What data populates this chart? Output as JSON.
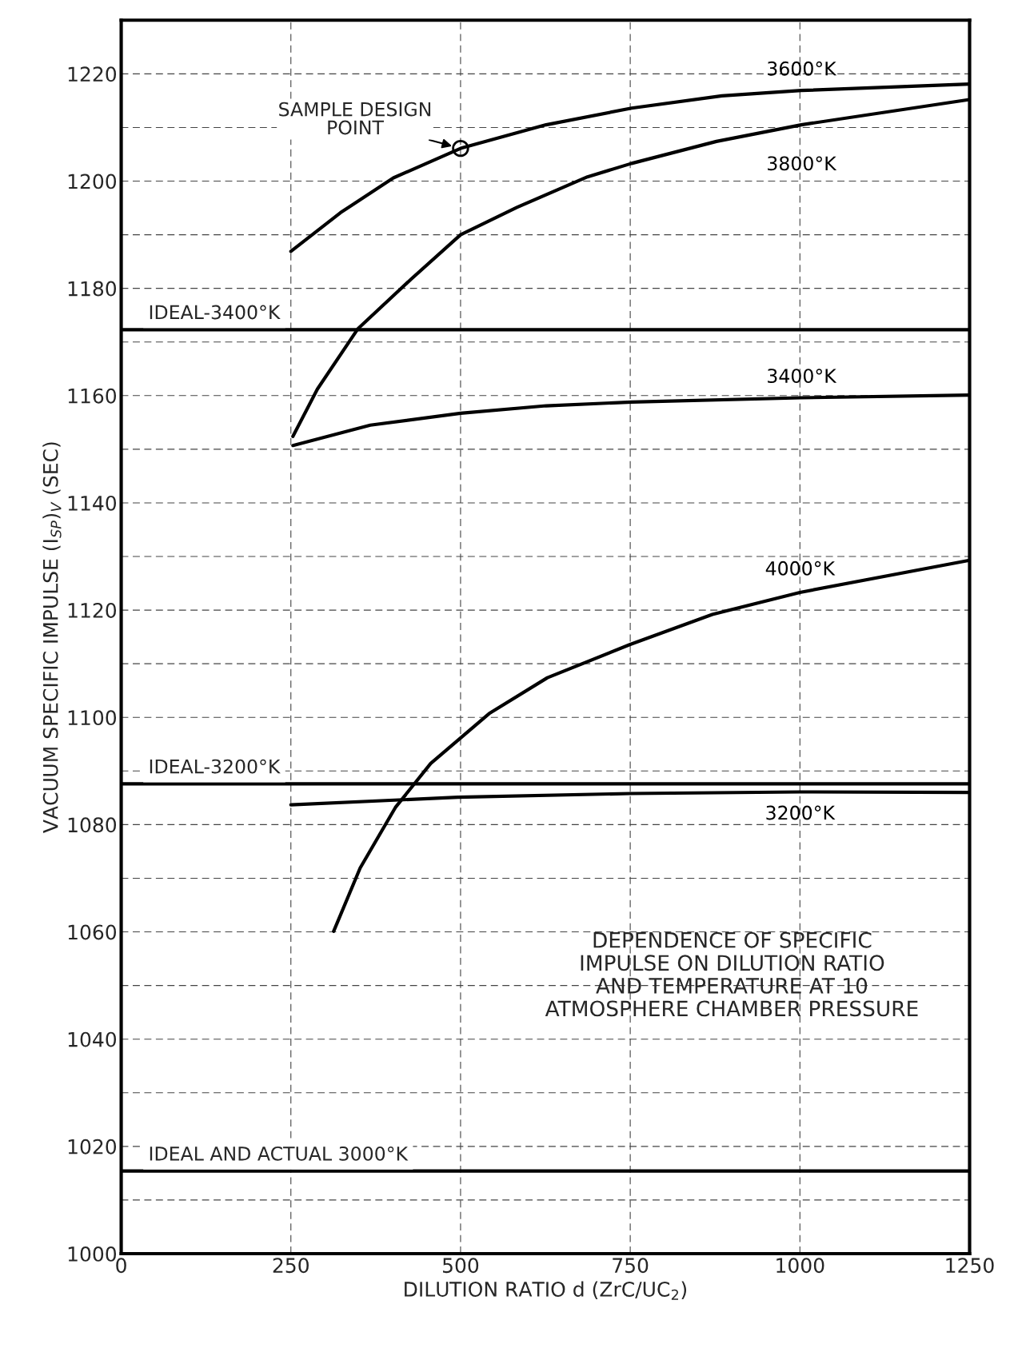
{
  "chart_data": {
    "type": "line",
    "xlabel": "DILUTION RATIO d (ZrC/UC$_{2}$)",
    "ylabel": "VACUUM SPECIFIC IMPULSE (I$_{SP}$)$_{V}$ (SEC)",
    "xlim": [
      0,
      1250
    ],
    "xticks": [
      0,
      250,
      500,
      750,
      1000,
      1250
    ],
    "ylim": [
      1000,
      1230
    ],
    "yticks": [
      1000,
      {
        "value": 1010,
        "label": null
      },
      1020,
      {
        "value": 1030,
        "label": null
      },
      1040,
      {
        "value": 1050,
        "label": null
      },
      1060,
      {
        "value": 1070,
        "label": null
      },
      1080,
      {
        "value": 1090,
        "label": null
      },
      1100,
      {
        "value": 1110,
        "label": null
      },
      1120,
      {
        "value": 1130,
        "label": null
      },
      1140,
      {
        "value": 1150,
        "label": null
      },
      1160,
      {
        "value": 1170,
        "label": null
      },
      1180,
      {
        "value": 1190,
        "label": null
      },
      1200,
      {
        "value": 1210,
        "label": null
      },
      1220
    ],
    "grid": true,
    "legend": false,
    "marker": "none",
    "line_style": "solid",
    "series": [
      {
        "name": "3600°K",
        "color": "#000000",
        "x": [
          250,
          323,
          401,
          500,
          626,
          752,
          885,
          1002,
          1250
        ],
        "values": [
          1186.9,
          1194.1,
          1200.6,
          1206.1,
          1210.5,
          1213.6,
          1215.9,
          1216.9,
          1218.1
        ]
      },
      {
        "name": "3800°K",
        "color": "#000000",
        "x": [
          253,
          289,
          349,
          427,
          500,
          583,
          687,
          752,
          877,
          1002,
          1250
        ],
        "values": [
          1152.4,
          1161.2,
          1172.5,
          1181.7,
          1190.0,
          1195.1,
          1200.8,
          1203.3,
          1207.4,
          1210.5,
          1215.2
        ]
      },
      {
        "name": "3400°K",
        "color": "#000000",
        "x": [
          253,
          367,
          500,
          626,
          752,
          1002,
          1250
        ],
        "values": [
          1150.7,
          1154.5,
          1156.7,
          1158.1,
          1158.8,
          1159.6,
          1160.1
        ]
      },
      {
        "name": "4000°K",
        "color": "#000000",
        "x": [
          313,
          352,
          404,
          456,
          542,
          628,
          750,
          871,
          1000,
          1250
        ],
        "values": [
          1060.1,
          1071.9,
          1083.2,
          1091.4,
          1100.7,
          1107.4,
          1113.6,
          1119.2,
          1123.3,
          1129.3
        ]
      },
      {
        "name": "3200°K",
        "color": "#000000",
        "x": [
          250,
          496,
          750,
          1000,
          1250
        ],
        "values": [
          1083.7,
          1085.1,
          1085.8,
          1086.1,
          1086.0
        ]
      },
      {
        "type": "scatter",
        "marker": "circle",
        "color": "#000000",
        "x": [
          500
        ],
        "values": [
          1206.1
        ]
      }
    ],
    "ref_lines": [
      {
        "axis": "y",
        "value": 1172.3,
        "label": "IDEAL-3400°K",
        "color": "#000000"
      },
      {
        "axis": "y",
        "value": 1087.6,
        "label": "IDEAL-3200°K",
        "color": "#000000"
      },
      {
        "axis": "y",
        "value": 1015.4,
        "label": "IDEAL AND ACTUAL 3000°K",
        "color": "#000000"
      }
    ],
    "annotations": [
      {
        "text": "SAMPLE DESIGN\nPOINT",
        "x": 500,
        "y": 1206.1
      },
      "DEPENDENCE OF SPECIFIC\nIMPULSE ON DILUTION RATIO\nAND TEMPERATURE AT 10\nATMOSPHERE CHAMBER PRESSURE"
    ]
  }
}
